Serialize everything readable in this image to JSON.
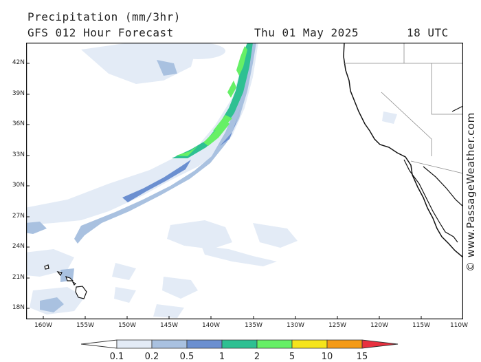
{
  "header": {
    "title": "Precipitation (mm/3hr)",
    "model": "GFS 012 Hour Forecast",
    "date": "Thu 01 May 2025",
    "time": "18 UTC"
  },
  "credit": "© www.PassageWeather.com",
  "map": {
    "lat_labels": [
      "42N",
      "39N",
      "36N",
      "33N",
      "30N",
      "27N",
      "24N",
      "21N",
      "18N"
    ],
    "lon_labels": [
      "160W",
      "155W",
      "150W",
      "145W",
      "140W",
      "135W",
      "130W",
      "125W",
      "120W",
      "115W",
      "110W"
    ]
  },
  "legend": {
    "values": [
      "0.1",
      "0.2",
      "0.5",
      "1",
      "2",
      "5",
      "10",
      "15"
    ],
    "colors": [
      "#ffffff",
      "#e3ebf6",
      "#a9c1e0",
      "#6b8fd0",
      "#2ec092",
      "#66f066",
      "#f5e41b",
      "#f49a16",
      "#e8303f"
    ]
  }
}
